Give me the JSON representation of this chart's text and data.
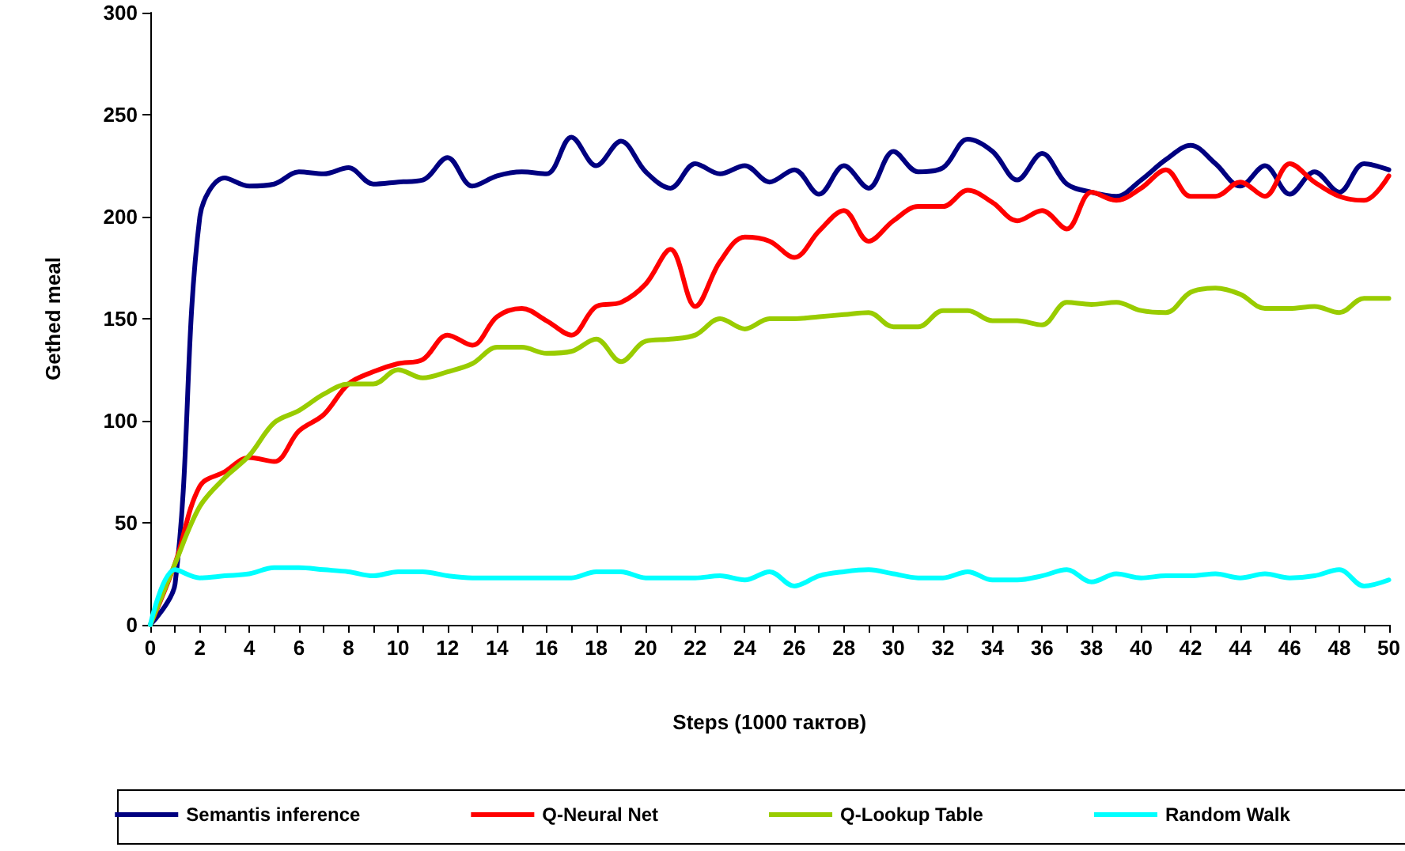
{
  "chart_data": {
    "type": "line",
    "xlabel": "Steps (1000 тактов)",
    "ylabel": "Gethed meal",
    "x": [
      0,
      1,
      2,
      3,
      4,
      5,
      6,
      7,
      8,
      9,
      10,
      11,
      12,
      13,
      14,
      15,
      16,
      17,
      18,
      19,
      20,
      21,
      22,
      23,
      24,
      25,
      26,
      27,
      28,
      29,
      30,
      31,
      32,
      33,
      34,
      35,
      36,
      37,
      38,
      39,
      40,
      41,
      42,
      43,
      44,
      45,
      46,
      47,
      48,
      49,
      50
    ],
    "xlim": [
      0,
      50
    ],
    "xticks": [
      0,
      {
        "value": 1,
        "label": null
      },
      2,
      {
        "value": 3,
        "label": null
      },
      4,
      {
        "value": 5,
        "label": null
      },
      6,
      {
        "value": 7,
        "label": null
      },
      8,
      {
        "value": 9,
        "label": null
      },
      10,
      {
        "value": 11,
        "label": null
      },
      12,
      {
        "value": 13,
        "label": null
      },
      14,
      {
        "value": 15,
        "label": null
      },
      16,
      {
        "value": 17,
        "label": null
      },
      18,
      {
        "value": 19,
        "label": null
      },
      20,
      {
        "value": 21,
        "label": null
      },
      22,
      {
        "value": 23,
        "label": null
      },
      24,
      {
        "value": 25,
        "label": null
      },
      26,
      {
        "value": 27,
        "label": null
      },
      28,
      {
        "value": 29,
        "label": null
      },
      30,
      {
        "value": 31,
        "label": null
      },
      32,
      {
        "value": 33,
        "label": null
      },
      34,
      {
        "value": 35,
        "label": null
      },
      36,
      {
        "value": 37,
        "label": null
      },
      38,
      {
        "value": 39,
        "label": null
      },
      40,
      {
        "value": 41,
        "label": null
      },
      42,
      {
        "value": 43,
        "label": null
      },
      44,
      {
        "value": 45,
        "label": null
      },
      46,
      {
        "value": 47,
        "label": null
      },
      48,
      {
        "value": 49,
        "label": null
      },
      50
    ],
    "ylim": [
      0,
      300
    ],
    "yticks": [
      0,
      50,
      100,
      150,
      200,
      250,
      300
    ],
    "grid": false,
    "legend": "bottom",
    "marker": "none",
    "line_style": "solid",
    "series": [
      {
        "name": "Semantis inference",
        "color": "#000080",
        "values": [
          0,
          20,
          200,
          219,
          215,
          216,
          222,
          221,
          224,
          216,
          217,
          218,
          229,
          215,
          220,
          222,
          221,
          239,
          225,
          237,
          222,
          214,
          226,
          221,
          225,
          217,
          223,
          211,
          225,
          214,
          232,
          222,
          224,
          238,
          232,
          218,
          231,
          216,
          212,
          210,
          218,
          228,
          235,
          226,
          215,
          225,
          211,
          222,
          212,
          226,
          223
        ]
      },
      {
        "name": "Q-Neural Net",
        "color": "#ff0000",
        "values": [
          0,
          30,
          68,
          75,
          82,
          80,
          95,
          103,
          118,
          124,
          128,
          130,
          142,
          137,
          151,
          155,
          149,
          142,
          156,
          158,
          167,
          184,
          156,
          178,
          190,
          188,
          180,
          193,
          203,
          188,
          198,
          205,
          205,
          213,
          207,
          198,
          203,
          194,
          212,
          208,
          214,
          223,
          210,
          210,
          217,
          210,
          226,
          217,
          210,
          208,
          220
        ]
      },
      {
        "name": "Q-Lookup Table",
        "color": "#99cc00",
        "values": [
          0,
          30,
          58,
          72,
          83,
          99,
          105,
          113,
          118,
          118,
          125,
          121,
          124,
          128,
          136,
          136,
          133,
          134,
          140,
          129,
          139,
          140,
          142,
          150,
          145,
          150,
          150,
          151,
          152,
          153,
          146,
          146,
          154,
          154,
          149,
          149,
          147,
          158,
          157,
          158,
          154,
          153,
          163,
          165,
          162,
          155,
          155,
          156,
          153,
          160,
          160
        ]
      },
      {
        "name": "Random Walk",
        "color": "#00ffff",
        "values": [
          0,
          27,
          23,
          24,
          25,
          28,
          28,
          27,
          26,
          24,
          26,
          26,
          24,
          23,
          23,
          23,
          23,
          23,
          26,
          26,
          23,
          23,
          23,
          24,
          22,
          26,
          19,
          24,
          26,
          27,
          25,
          23,
          23,
          26,
          22,
          22,
          24,
          27,
          21,
          25,
          23,
          24,
          24,
          25,
          23,
          25,
          23,
          24,
          27,
          19,
          22
        ]
      }
    ]
  }
}
